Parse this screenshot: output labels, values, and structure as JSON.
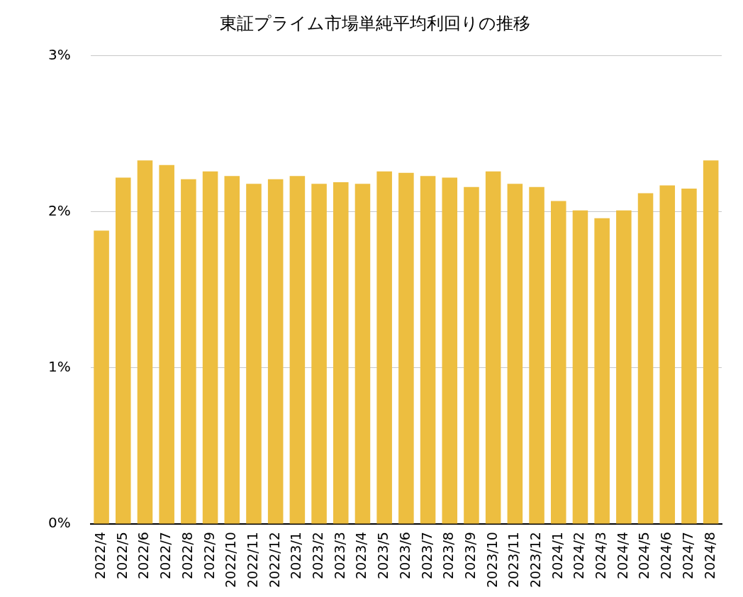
{
  "chart_data": {
    "type": "bar",
    "title": "東証プライム市場単純平均利回りの推移",
    "categories": [
      "2022/4",
      "2022/5",
      "2022/6",
      "2022/7",
      "2022/8",
      "2022/9",
      "2022/10",
      "2022/11",
      "2022/12",
      "2023/1",
      "2023/2",
      "2023/3",
      "2023/4",
      "2023/5",
      "2023/6",
      "2023/7",
      "2023/8",
      "2023/9",
      "2023/10",
      "2023/11",
      "2023/12",
      "2024/1",
      "2024/2",
      "2024/3",
      "2024/4",
      "2024/5",
      "2024/6",
      "2024/7",
      "2024/8"
    ],
    "values": [
      1.88,
      2.22,
      2.33,
      2.3,
      2.21,
      2.26,
      2.23,
      2.18,
      2.21,
      2.23,
      2.18,
      2.19,
      2.18,
      2.26,
      2.25,
      2.23,
      2.22,
      2.16,
      2.26,
      2.18,
      2.16,
      2.07,
      2.01,
      1.96,
      2.01,
      2.12,
      2.17,
      2.15,
      2.33
    ],
    "color": "#edbe40",
    "ylim": [
      0,
      3
    ],
    "yticks": [
      {
        "value": 0,
        "label": "0%"
      },
      {
        "value": 1,
        "label": "1%"
      },
      {
        "value": 2,
        "label": "2%"
      },
      {
        "value": 3,
        "label": "3%"
      }
    ],
    "grid": true
  }
}
